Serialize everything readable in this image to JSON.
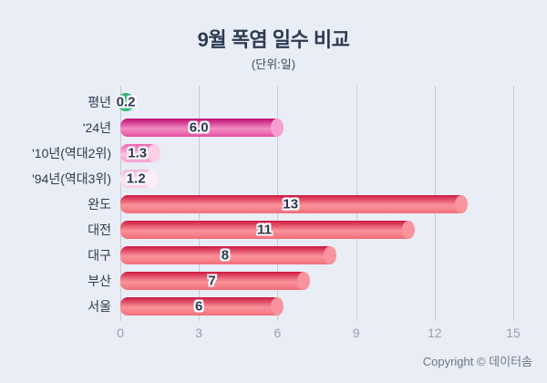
{
  "header": {
    "title": "9월 폭염 일수 비교",
    "subtitle": "(단위:일)"
  },
  "footer": {
    "copyright": "Copyright © 데이터솜"
  },
  "chart_data": {
    "type": "bar",
    "orientation": "horizontal",
    "title": "9월 폭염 일수 비교",
    "unit_label": "(단위:일)",
    "xlim": [
      0,
      15
    ],
    "xticks": [
      "0",
      "3",
      "6",
      "9",
      "12",
      "15"
    ],
    "grid": true,
    "legend": false,
    "categories": [
      "평년",
      "'24년",
      "'10년(역대2위)",
      "'94년(역대3위)",
      "완도",
      "대전",
      "대구",
      "부산",
      "서울"
    ],
    "values": [
      0.2,
      6.0,
      1.3,
      1.2,
      13,
      11,
      8,
      7,
      6
    ],
    "rows": [
      {
        "label": "평년",
        "value": 0.2,
        "display": "0.2",
        "palette": "green"
      },
      {
        "label": "'24년",
        "value": 6.0,
        "display": "6.0",
        "palette": "magenta"
      },
      {
        "label": "'10년(역대2위)",
        "value": 1.3,
        "display": "1.3",
        "palette": "pink"
      },
      {
        "label": "'94년(역대3위)",
        "value": 1.2,
        "display": "1.2",
        "palette": "pinklight"
      },
      {
        "label": "완도",
        "value": 13,
        "display": "13",
        "palette": "red"
      },
      {
        "label": "대전",
        "value": 11,
        "display": "11",
        "palette": "red"
      },
      {
        "label": "대구",
        "value": 8,
        "display": "8",
        "palette": "red"
      },
      {
        "label": "부산",
        "value": 7,
        "display": "7",
        "palette": "red"
      },
      {
        "label": "서울",
        "value": 6,
        "display": "6",
        "palette": "red"
      }
    ]
  },
  "colors": {
    "background": "#e9edf6",
    "title_text": "#2d3a52",
    "axis_text": "#9aa1ad",
    "category_text": "#323b4e",
    "value_text": "#2b3550",
    "gridline": "#c5cad4",
    "palettes": {
      "green": {
        "top": "#2fae6e",
        "mid": "#52cd8e",
        "bottom": "#35b878",
        "cap": "#5fd49a"
      },
      "magenta": {
        "top": "#c00d74",
        "mid": "#f28cc4",
        "bottom": "#e1509f",
        "cap": "#f7a0d0"
      },
      "pink": {
        "top": "#e965af",
        "mid": "#fbc4e1",
        "bottom": "#f5a3d0",
        "cap": "#fbcfe7"
      },
      "pinklight": {
        "top": "#f4b3d9",
        "mid": "#fce9f4",
        "bottom": "#f8cfe7",
        "cap": "#fdeef7"
      },
      "red": {
        "top": "#cc1840",
        "mid": "#fb939b",
        "bottom": "#f06f7a",
        "cap": "#f9939e"
      }
    }
  }
}
